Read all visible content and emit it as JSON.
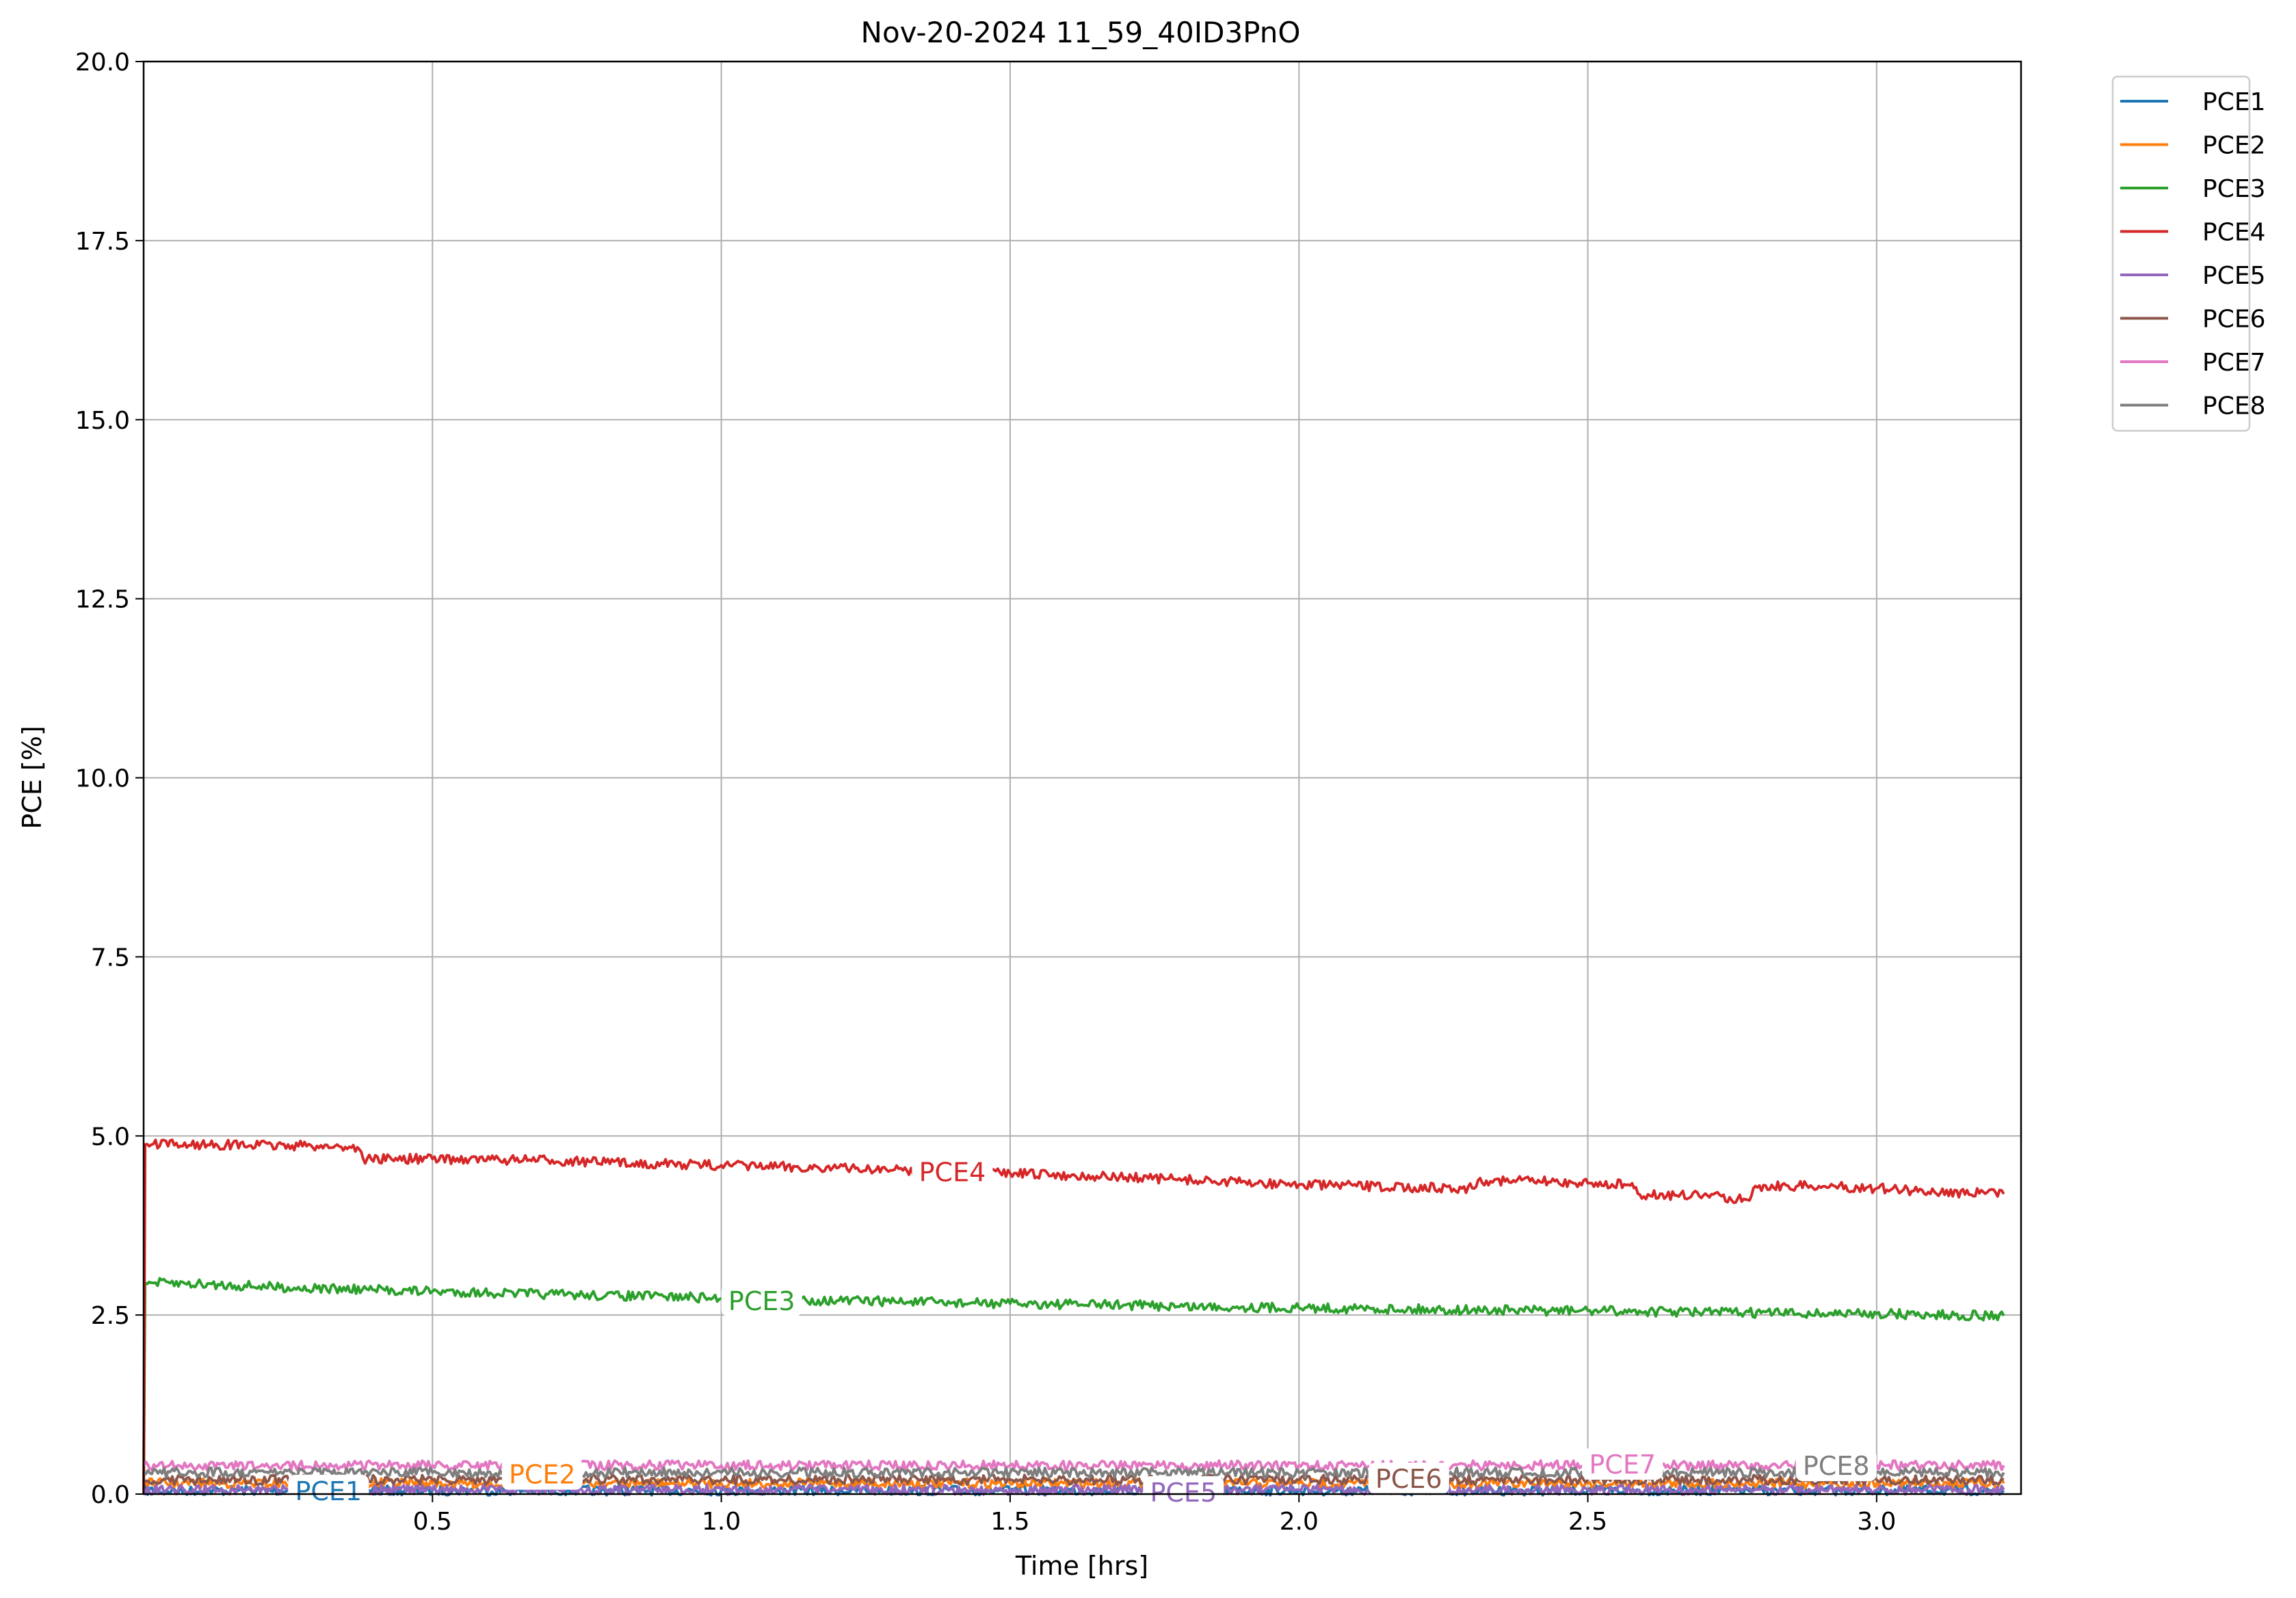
{
  "chart_data": {
    "type": "line",
    "title": "Nov-20-2024 11_59_40ID3PnO",
    "xlabel": "Time [hrs]",
    "ylabel": "PCE [%]",
    "xlim": [
      0.0,
      3.25
    ],
    "ylim": [
      0.0,
      20.0
    ],
    "xticks": [
      0.5,
      1.0,
      1.5,
      2.0,
      2.5,
      3.0
    ],
    "xtick_labels": [
      "0.5",
      "1.0",
      "1.5",
      "2.0",
      "2.5",
      "3.0"
    ],
    "yticks": [
      0.0,
      2.5,
      5.0,
      7.5,
      10.0,
      12.5,
      15.0,
      17.5,
      20.0
    ],
    "ytick_labels": [
      "0.0",
      "2.5",
      "5.0",
      "7.5",
      "10.0",
      "12.5",
      "15.0",
      "17.5",
      "20.0"
    ],
    "grid": true,
    "legend_position": "outside-top-right",
    "series": [
      {
        "name": "PCE1",
        "color": "#1f77b4",
        "label_x": 0.32,
        "label_y": 0.05,
        "x": [
          0.0,
          0.5,
          1.0,
          1.5,
          2.0,
          2.5,
          3.0,
          3.22
        ],
        "y": [
          0.05,
          0.05,
          0.05,
          0.05,
          0.05,
          0.05,
          0.05,
          0.05
        ]
      },
      {
        "name": "PCE2",
        "color": "#ff7f0e",
        "label_x": 0.69,
        "label_y": 0.28,
        "x": [
          0.0,
          0.5,
          1.0,
          1.5,
          2.0,
          2.5,
          3.0,
          3.22
        ],
        "y": [
          0.15,
          0.15,
          0.15,
          0.15,
          0.15,
          0.15,
          0.15,
          0.15
        ]
      },
      {
        "name": "PCE3",
        "color": "#2ca02c",
        "label_x": 1.07,
        "label_y": 2.7,
        "x": [
          0.0,
          0.0025,
          0.1,
          0.2,
          0.3,
          0.4,
          0.5,
          0.6,
          0.7,
          0.8,
          0.9,
          1.0,
          1.1,
          1.2,
          1.3,
          1.4,
          1.5,
          1.6,
          1.7,
          1.8,
          1.9,
          2.0,
          2.1,
          2.2,
          2.3,
          2.4,
          2.5,
          2.6,
          2.7,
          2.8,
          2.9,
          3.0,
          3.1,
          3.22
        ],
        "y": [
          0.0,
          2.95,
          2.93,
          2.9,
          2.87,
          2.85,
          2.83,
          2.81,
          2.79,
          2.77,
          2.76,
          2.73,
          2.72,
          2.7,
          2.69,
          2.67,
          2.66,
          2.65,
          2.64,
          2.62,
          2.61,
          2.6,
          2.59,
          2.58,
          2.57,
          2.56,
          2.56,
          2.55,
          2.54,
          2.53,
          2.52,
          2.52,
          2.5,
          2.49
        ]
      },
      {
        "name": "PCE4",
        "color": "#d62728",
        "label_x": 1.4,
        "label_y": 4.5,
        "x": [
          0.0,
          0.0025,
          0.1,
          0.2,
          0.3,
          0.37,
          0.38,
          0.5,
          0.6,
          0.7,
          0.8,
          0.9,
          1.0,
          1.1,
          1.2,
          1.3,
          1.4,
          1.5,
          1.6,
          1.7,
          1.8,
          1.9,
          2.0,
          2.1,
          2.2,
          2.3,
          2.31,
          2.4,
          2.5,
          2.57,
          2.59,
          2.7,
          2.77,
          2.78,
          2.79,
          2.9,
          3.0,
          3.1,
          3.22
        ],
        "y": [
          0.0,
          4.88,
          4.88,
          4.87,
          4.86,
          4.84,
          4.68,
          4.68,
          4.67,
          4.66,
          4.63,
          4.61,
          4.59,
          4.57,
          4.55,
          4.53,
          4.5,
          4.48,
          4.45,
          4.42,
          4.39,
          4.35,
          4.32,
          4.3,
          4.28,
          4.27,
          4.38,
          4.37,
          4.34,
          4.32,
          4.18,
          4.17,
          4.12,
          4.1,
          4.3,
          4.3,
          4.27,
          4.22,
          4.19
        ]
      },
      {
        "name": "PCE5",
        "color": "#9467bd",
        "label_x": 1.8,
        "label_y": 0.03,
        "x": [
          0.0,
          0.5,
          1.0,
          1.5,
          2.0,
          2.5,
          3.0,
          3.22
        ],
        "y": [
          0.06,
          0.06,
          0.06,
          0.06,
          0.06,
          0.06,
          0.06,
          0.06
        ]
      },
      {
        "name": "PCE6",
        "color": "#8c564b",
        "label_x": 2.19,
        "label_y": 0.22,
        "x": [
          0.0,
          0.5,
          1.0,
          1.5,
          2.0,
          2.5,
          3.0,
          3.22
        ],
        "y": [
          0.2,
          0.2,
          0.2,
          0.2,
          0.2,
          0.2,
          0.2,
          0.2
        ]
      },
      {
        "name": "PCE7",
        "color": "#e377c2",
        "label_x": 2.56,
        "label_y": 0.42,
        "x": [
          0.0,
          0.5,
          1.0,
          1.5,
          2.0,
          2.5,
          3.0,
          3.22
        ],
        "y": [
          0.4,
          0.4,
          0.4,
          0.4,
          0.4,
          0.4,
          0.4,
          0.4
        ]
      },
      {
        "name": "PCE8",
        "color": "#7f7f7f",
        "label_x": 2.93,
        "label_y": 0.4,
        "x": [
          0.0,
          0.5,
          1.0,
          1.5,
          2.0,
          2.5,
          3.0,
          3.22
        ],
        "y": [
          0.3,
          0.3,
          0.3,
          0.3,
          0.3,
          0.3,
          0.3,
          0.3
        ]
      }
    ]
  }
}
